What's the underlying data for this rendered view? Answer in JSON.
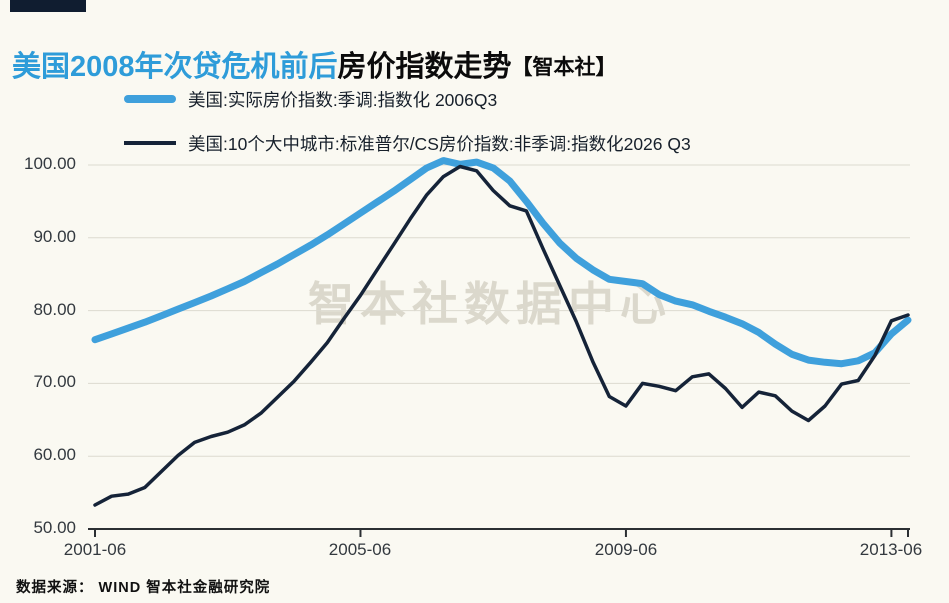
{
  "page": {
    "title_blue": "美国2008年次贷危机前后",
    "title_black": "房价指数走势",
    "title_brand": "【智本社】",
    "watermark": "智本社数据中心",
    "source_note": "数据来源： WIND 智本社金融研究院",
    "colors": {
      "background": "#FAF9F2",
      "blue_line": "#3FA0DC",
      "dark_line": "#152338",
      "grid": "#DCDAD0",
      "axis": "#2B2F33",
      "title_blue": "#2E9CD9",
      "watermark": "#DBD8CC"
    }
  },
  "legend": {
    "items": [
      {
        "label": "美国:实际房价指数:季调:指数化 2006Q3",
        "color": "#3FA0DC"
      },
      {
        "label": "美国:10个大中城市:标准普尔/CS房价指数:非季调:指数化2026 Q3",
        "color": "#152338"
      }
    ]
  },
  "chart_data": {
    "type": "line",
    "title": "美国2008年次贷危机前后房价指数走势",
    "xlabel": "",
    "ylabel": "",
    "ylim": [
      50,
      102
    ],
    "grid": "horizontal",
    "legend_position": "top-left",
    "y_ticks": [
      100,
      90,
      80,
      70,
      60,
      50
    ],
    "y_tick_labels": [
      "100.00",
      "90.00",
      "80.00",
      "70.00",
      "60.00",
      "50.00"
    ],
    "x_tick_labels": [
      "2001-06",
      "2005-06",
      "2009-06",
      "2013-06"
    ],
    "x_tick_indices": [
      0,
      16,
      32,
      48
    ],
    "x": [
      "2001-06",
      "2001-09",
      "2001-12",
      "2002-03",
      "2002-06",
      "2002-09",
      "2002-12",
      "2003-03",
      "2003-06",
      "2003-09",
      "2003-12",
      "2004-03",
      "2004-06",
      "2004-09",
      "2004-12",
      "2005-03",
      "2005-06",
      "2005-09",
      "2005-12",
      "2006-03",
      "2006-06",
      "2006-09",
      "2006-12",
      "2007-03",
      "2007-06",
      "2007-09",
      "2007-12",
      "2008-03",
      "2008-06",
      "2008-09",
      "2008-12",
      "2009-03",
      "2009-06",
      "2009-09",
      "2009-12",
      "2010-03",
      "2010-06",
      "2010-09",
      "2010-12",
      "2011-03",
      "2011-06",
      "2011-09",
      "2011-12",
      "2012-03",
      "2012-06",
      "2012-09",
      "2012-12",
      "2013-03",
      "2013-06",
      "2013-09"
    ],
    "series": [
      {
        "name": "美国:实际房价指数:季调:指数化 2006Q3",
        "color": "#3FA0DC",
        "stroke_width": 7,
        "values": [
          76.0,
          76.8,
          77.6,
          78.4,
          79.3,
          80.2,
          81.1,
          82.0,
          83.0,
          84.0,
          85.2,
          86.4,
          87.7,
          89.0,
          90.4,
          91.9,
          93.4,
          94.9,
          96.4,
          98.0,
          99.6,
          100.6,
          100.1,
          100.4,
          99.6,
          97.8,
          95.0,
          92.0,
          89.3,
          87.2,
          85.6,
          84.3,
          84.0,
          83.7,
          82.2,
          81.3,
          80.8,
          79.9,
          79.1,
          78.2,
          77.0,
          75.4,
          74.0,
          73.2,
          72.9,
          72.7,
          73.1,
          74.2,
          76.8,
          78.7
        ]
      },
      {
        "name": "美国:10个大中城市:标准普尔/CS房价指数:非季调:指数化2026 Q3",
        "color": "#152338",
        "stroke_width": 3.5,
        "values": [
          53.3,
          54.5,
          54.8,
          55.7,
          57.9,
          60.1,
          61.9,
          62.7,
          63.3,
          64.3,
          65.9,
          68.1,
          70.3,
          72.9,
          75.6,
          78.9,
          82.1,
          85.6,
          89.1,
          92.6,
          95.9,
          98.4,
          99.8,
          99.2,
          96.5,
          94.4,
          93.7,
          88.5,
          83.5,
          78.5,
          73.0,
          68.2,
          66.9,
          70.0,
          69.6,
          69.0,
          70.9,
          71.3,
          69.3,
          66.7,
          68.8,
          68.3,
          66.2,
          64.9,
          66.9,
          69.9,
          70.4,
          73.8,
          78.6,
          79.4
        ]
      }
    ]
  }
}
